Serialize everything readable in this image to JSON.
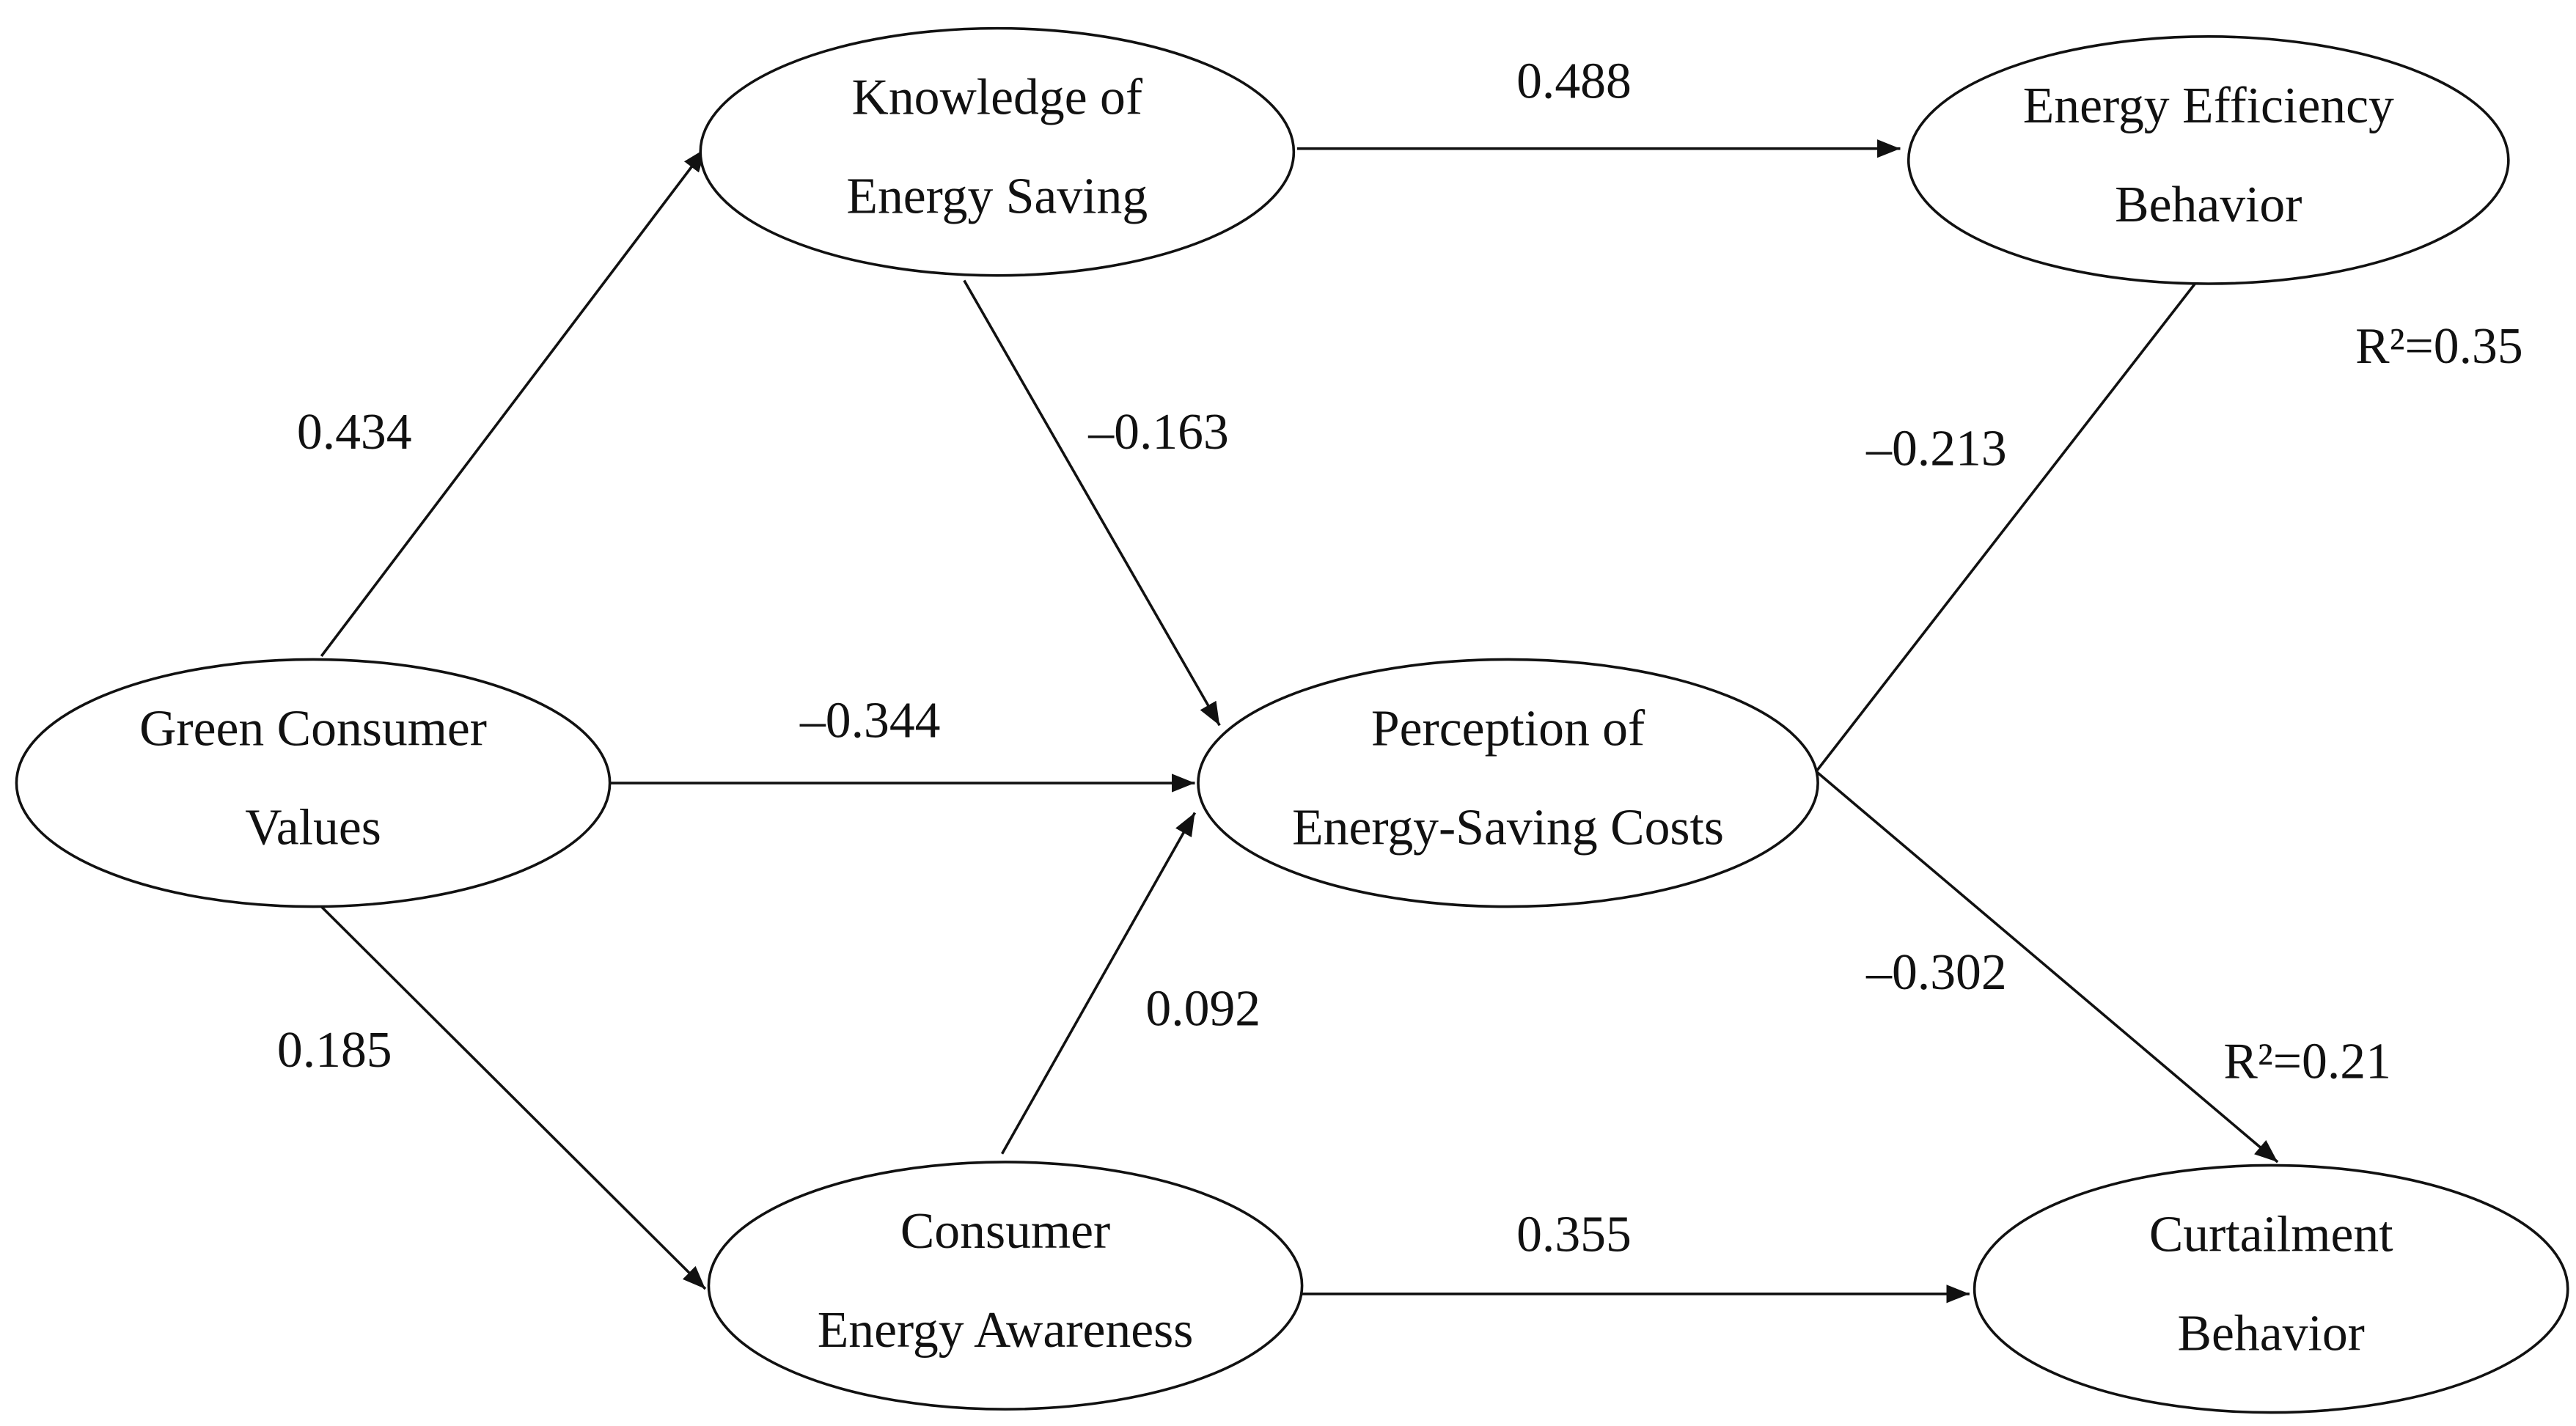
{
  "nodes": [
    {
      "lines": [
        "Green Consumer",
        "Values"
      ]
    },
    {
      "lines": [
        "Knowledge of",
        "Energy Saving"
      ]
    },
    {
      "lines": [
        "Perception of",
        "Energy-Saving Costs"
      ]
    },
    {
      "lines": [
        "Consumer",
        "Energy Awareness"
      ]
    },
    {
      "lines": [
        "Energy Efficiency",
        "Behavior"
      ]
    },
    {
      "lines": [
        "Curtailment",
        "Behavior"
      ]
    }
  ],
  "edges": [
    {
      "label": "0.434"
    },
    {
      "label": "–0.344"
    },
    {
      "label": "0.185"
    },
    {
      "label": "–0.163"
    },
    {
      "label": "0.488"
    },
    {
      "label": "0.092"
    },
    {
      "label": "–0.213"
    },
    {
      "label": "–0.302"
    },
    {
      "label": "0.355"
    }
  ],
  "annotations": [
    "R²=0.35",
    "R²=0.21"
  ]
}
